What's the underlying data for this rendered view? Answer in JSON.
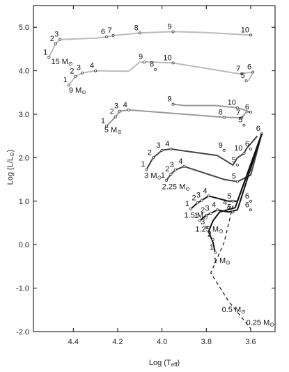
{
  "chart_data": {
    "type": "line",
    "title": "",
    "xlabel": "Log (T",
    "xlabel_sub": "eff",
    "xlabel_close": ")",
    "ylabel": "Log (L/L",
    "ylabel_sub": "⊙",
    "ylabel_close": ")",
    "xlim": [
      4.58,
      3.49
    ],
    "ylim": [
      -2.0,
      5.5
    ],
    "x_reversed": true,
    "x_ticks": [
      {
        "value": 4.4,
        "label": "4.4"
      },
      {
        "value": 4.2,
        "label": "4.2"
      },
      {
        "value": 4.0,
        "label": "4.0"
      },
      {
        "value": 3.8,
        "label": "3.8"
      },
      {
        "value": 3.6,
        "label": "3.6"
      }
    ],
    "y_ticks": [
      {
        "value": 5.0,
        "label": "5.0"
      },
      {
        "value": 4.0,
        "label": "4.0"
      },
      {
        "value": 3.0,
        "label": "3.0"
      },
      {
        "value": 2.0,
        "label": "2.0"
      },
      {
        "value": 1.0,
        "label": "1.0"
      },
      {
        "value": 0.0,
        "label": "0.0"
      },
      {
        "value": -1.0,
        "label": "-1.0"
      },
      {
        "value": -2.0,
        "label": "-2.0"
      }
    ],
    "grid": false,
    "main_sequence": {
      "style": "dashed",
      "points": [
        [
          3.68,
          0.9
        ],
        [
          3.72,
          0.05
        ],
        [
          3.78,
          -0.65
        ],
        [
          3.7,
          -1.3
        ],
        [
          3.6,
          -1.93
        ]
      ]
    },
    "series": [
      {
        "label": "15 M",
        "color": "#bbbbbb",
        "points": [
          [
            4.51,
            4.31
          ],
          [
            4.48,
            4.62
          ],
          [
            4.46,
            4.72
          ],
          [
            4.3,
            4.75
          ],
          [
            4.25,
            4.78
          ],
          [
            4.22,
            4.81
          ],
          [
            4.1,
            4.87
          ],
          [
            3.95,
            4.9
          ],
          [
            3.8,
            4.88
          ],
          [
            3.6,
            4.82
          ]
        ],
        "stages": [
          {
            "n": "1",
            "x": 4.51,
            "y": 4.31
          },
          {
            "n": "2",
            "x": 4.48,
            "y": 4.62
          },
          {
            "n": "3",
            "x": 4.46,
            "y": 4.72
          },
          {
            "n": "6",
            "x": 4.25,
            "y": 4.78
          },
          {
            "n": "7",
            "x": 4.22,
            "y": 4.81
          },
          {
            "n": "8",
            "x": 4.1,
            "y": 4.87
          },
          {
            "n": "9",
            "x": 3.95,
            "y": 4.9
          },
          {
            "n": "10",
            "x": 3.6,
            "y": 4.82
          }
        ]
      },
      {
        "label": "9 M",
        "color": "#bbbbbb",
        "points": [
          [
            4.42,
            3.67
          ],
          [
            4.39,
            3.87
          ],
          [
            4.36,
            3.95
          ],
          [
            4.3,
            4.0
          ],
          [
            4.15,
            3.99
          ],
          [
            4.1,
            4.2
          ],
          [
            4.05,
            4.2
          ],
          [
            3.95,
            4.18
          ],
          [
            3.65,
            3.93
          ],
          [
            3.59,
            3.97
          ],
          [
            3.61,
            3.77
          ]
        ],
        "stages": [
          {
            "n": "1",
            "x": 4.42,
            "y": 3.67
          },
          {
            "n": "2",
            "x": 4.39,
            "y": 3.87
          },
          {
            "n": "3",
            "x": 4.36,
            "y": 3.95
          },
          {
            "n": "4",
            "x": 4.3,
            "y": 4.0
          },
          {
            "n": "9",
            "x": 4.08,
            "y": 4.2
          },
          {
            "n": "8",
            "x": 4.03,
            "y": 4.03
          },
          {
            "n": "10",
            "x": 3.95,
            "y": 4.18
          },
          {
            "n": "7",
            "x": 3.64,
            "y": 3.93
          },
          {
            "n": "6",
            "x": 3.59,
            "y": 3.97
          },
          {
            "n": "5",
            "x": 3.62,
            "y": 3.77
          }
        ]
      },
      {
        "label": "5 M",
        "color": "#999999",
        "points": [
          [
            4.25,
            2.73
          ],
          [
            4.21,
            2.94
          ],
          [
            4.19,
            3.07
          ],
          [
            4.15,
            3.1
          ],
          [
            3.72,
            2.93
          ],
          [
            3.64,
            2.92
          ],
          [
            3.62,
            3.05
          ],
          [
            3.6,
            3.05
          ],
          [
            3.66,
            3.15
          ],
          [
            3.76,
            3.2
          ],
          [
            3.9,
            3.2
          ],
          [
            3.95,
            3.23
          ]
        ],
        "stages": [
          {
            "n": "1",
            "x": 4.25,
            "y": 2.73
          },
          {
            "n": "2",
            "x": 4.21,
            "y": 2.94
          },
          {
            "n": "3",
            "x": 4.19,
            "y": 3.07
          },
          {
            "n": "4",
            "x": 4.15,
            "y": 3.1
          },
          {
            "n": "9",
            "x": 3.95,
            "y": 3.23
          },
          {
            "n": "10",
            "x": 3.66,
            "y": 3.15
          },
          {
            "n": "8",
            "x": 3.72,
            "y": 2.93
          },
          {
            "n": "7",
            "x": 3.64,
            "y": 2.92
          },
          {
            "n": "6",
            "x": 3.6,
            "y": 3.05
          },
          {
            "n": "5",
            "x": 3.63,
            "y": 2.75
          }
        ]
      },
      {
        "label": "3 M",
        "color": "#444444",
        "points": [
          [
            4.07,
            1.73
          ],
          [
            4.04,
            2.0
          ],
          [
            4.0,
            2.17
          ],
          [
            3.96,
            2.2
          ],
          [
            3.75,
            2.05
          ],
          [
            3.68,
            1.83
          ],
          [
            3.66,
            2.0
          ],
          [
            3.63,
            2.1
          ],
          [
            3.62,
            2.2
          ],
          [
            3.57,
            2.5
          ]
        ],
        "stages": [
          {
            "n": "1",
            "x": 4.07,
            "y": 1.73
          },
          {
            "n": "2",
            "x": 4.04,
            "y": 2.0
          },
          {
            "n": "3",
            "x": 4.0,
            "y": 2.17
          },
          {
            "n": "4",
            "x": 3.96,
            "y": 2.2
          },
          {
            "n": "9",
            "x": 3.72,
            "y": 2.17
          },
          {
            "n": "10",
            "x": 3.63,
            "y": 2.1
          },
          {
            "n": "6",
            "x": 3.6,
            "y": 2.2
          },
          {
            "n": "5",
            "x": 3.66,
            "y": 1.83
          }
        ]
      },
      {
        "label": "2.25 M",
        "color": "#444444",
        "points": [
          [
            3.98,
            1.48
          ],
          [
            3.96,
            1.62
          ],
          [
            3.94,
            1.72
          ],
          [
            3.9,
            1.8
          ],
          [
            3.72,
            1.5
          ],
          [
            3.66,
            1.45
          ],
          [
            3.6,
            1.6
          ],
          [
            3.55,
            2.55
          ]
        ],
        "stages": [
          {
            "n": "1",
            "x": 3.98,
            "y": 1.48
          },
          {
            "n": "2",
            "x": 3.96,
            "y": 1.62
          },
          {
            "n": "3",
            "x": 3.94,
            "y": 1.72
          },
          {
            "n": "4",
            "x": 3.9,
            "y": 1.8
          },
          {
            "n": "5",
            "x": 3.66,
            "y": 1.45
          },
          {
            "n": "6",
            "x": 3.55,
            "y": 2.55
          }
        ]
      },
      {
        "label": "1.5 M",
        "color": "#111111",
        "points": [
          [
            3.87,
            0.82
          ],
          [
            3.84,
            0.96
          ],
          [
            3.82,
            1.02
          ],
          [
            3.79,
            1.12
          ],
          [
            3.7,
            1.0
          ],
          [
            3.66,
            1.0
          ],
          [
            3.55,
            2.55
          ]
        ],
        "stages": [
          {
            "n": "1",
            "x": 3.87,
            "y": 0.82
          },
          {
            "n": "2",
            "x": 3.84,
            "y": 0.96
          },
          {
            "n": "3",
            "x": 3.82,
            "y": 1.02
          },
          {
            "n": "4",
            "x": 3.79,
            "y": 1.12
          },
          {
            "n": "5",
            "x": 3.68,
            "y": 1.0
          },
          {
            "n": "6",
            "x": 3.6,
            "y": 1.0
          }
        ]
      },
      {
        "label": "1.25 M",
        "color": "#111111",
        "points": [
          [
            3.83,
            0.55
          ],
          [
            3.8,
            0.68
          ],
          [
            3.78,
            0.72
          ],
          [
            3.75,
            0.8
          ],
          [
            3.7,
            0.75
          ],
          [
            3.66,
            0.8
          ],
          [
            3.55,
            2.55
          ]
        ],
        "stages": [
          {
            "n": "1",
            "x": 3.83,
            "y": 0.55
          },
          {
            "n": "2",
            "x": 3.8,
            "y": 0.68
          },
          {
            "n": "3",
            "x": 3.78,
            "y": 0.72
          },
          {
            "n": "4",
            "x": 3.75,
            "y": 0.8
          },
          {
            "n": "5",
            "x": 3.68,
            "y": 0.75
          },
          {
            "n": "6",
            "x": 3.6,
            "y": 0.8
          }
        ]
      },
      {
        "label": "1 M",
        "color": "#111111",
        "points": [
          [
            3.76,
            -0.18
          ],
          [
            3.77,
            0.05
          ],
          [
            3.79,
            0.3
          ],
          [
            3.77,
            0.55
          ],
          [
            3.74,
            0.75
          ],
          [
            3.67,
            0.85
          ],
          [
            3.55,
            2.55
          ]
        ],
        "stages": [
          {
            "n": "1",
            "x": 3.76,
            "y": -0.18
          },
          {
            "n": "2",
            "x": 3.77,
            "y": 0.12
          },
          {
            "n": "3",
            "x": 3.8,
            "y": 0.4
          },
          {
            "n": "4",
            "x": 3.7,
            "y": 0.85
          }
        ]
      }
    ],
    "annotations": [
      {
        "text": "15 M",
        "x": 4.5,
        "y": 4.15
      },
      {
        "text": "9 M",
        "x": 4.42,
        "y": 3.5
      },
      {
        "text": "5 M",
        "x": 4.26,
        "y": 2.58
      },
      {
        "text": "3 M",
        "x": 4.08,
        "y": 1.53
      },
      {
        "text": "2.25 M",
        "x": 4.0,
        "y": 1.28
      },
      {
        "text": "1.5 M",
        "x": 3.9,
        "y": 0.62
      },
      {
        "text": "1.25 M",
        "x": 3.85,
        "y": 0.3
      },
      {
        "text": "1 M",
        "x": 3.77,
        "y": -0.42
      },
      {
        "text": "0.5 M",
        "x": 3.73,
        "y": -1.55
      },
      {
        "text": "0.25 M",
        "x": 3.62,
        "y": -1.85
      }
    ],
    "sun_symbol": "⊙"
  }
}
